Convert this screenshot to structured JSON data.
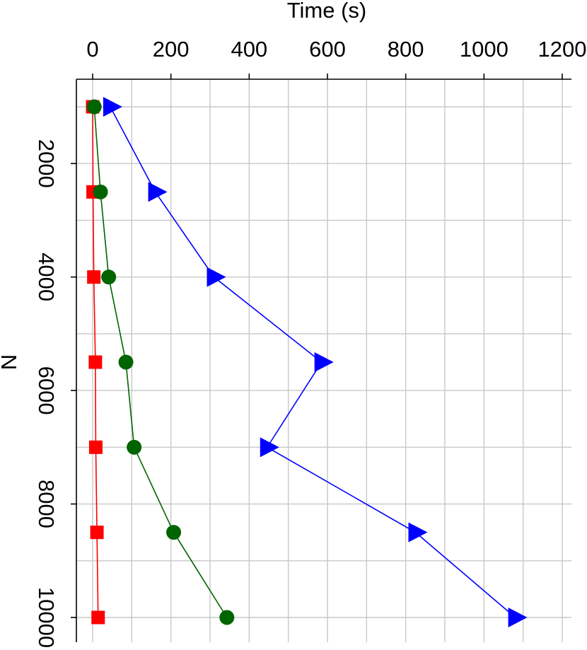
{
  "chart_data": {
    "type": "line",
    "xlabel": "Time (s)",
    "ylabel": "N",
    "xlim": [
      -40,
      1200
    ],
    "ylim": [
      900,
      10450
    ],
    "x_ticks": [
      0,
      200,
      400,
      600,
      800,
      1000,
      1200
    ],
    "x_tick_labels": [
      "0",
      "200",
      "400",
      "600",
      "800",
      "1000",
      "1200"
    ],
    "y_ticks": [
      2000,
      4000,
      6000,
      8000,
      10000
    ],
    "y_tick_labels": [
      "2000",
      "4000",
      "6000",
      "8000",
      "10000"
    ],
    "x_axis_position": "top",
    "y_reversed": true,
    "grid": true,
    "legend": "none",
    "categories": [
      1000,
      2500,
      4000,
      5500,
      7000,
      8500,
      10000
    ],
    "series": [
      {
        "marker": "square",
        "color": "#ff0000",
        "points": [
          {
            "x": 0,
            "y": 1000
          },
          {
            "x": 1,
            "y": 2500
          },
          {
            "x": 3,
            "y": 4000
          },
          {
            "x": 7,
            "y": 5500
          },
          {
            "x": 8,
            "y": 7000
          },
          {
            "x": 11,
            "y": 8500
          },
          {
            "x": 14,
            "y": 10000
          }
        ]
      },
      {
        "marker": "circle",
        "color": "#006400",
        "points": [
          {
            "x": 4,
            "y": 1000
          },
          {
            "x": 20,
            "y": 2500
          },
          {
            "x": 41,
            "y": 4000
          },
          {
            "x": 85,
            "y": 5500
          },
          {
            "x": 106,
            "y": 7000
          },
          {
            "x": 207,
            "y": 8500
          },
          {
            "x": 343,
            "y": 10000
          }
        ]
      },
      {
        "marker": "triangle-right",
        "color": "#0000ff",
        "points": [
          {
            "x": 45,
            "y": 1000
          },
          {
            "x": 160,
            "y": 2500
          },
          {
            "x": 310,
            "y": 4000
          },
          {
            "x": 585,
            "y": 5500
          },
          {
            "x": 446,
            "y": 7000
          },
          {
            "x": 825,
            "y": 8500
          },
          {
            "x": 1080,
            "y": 10000
          }
        ]
      }
    ]
  }
}
